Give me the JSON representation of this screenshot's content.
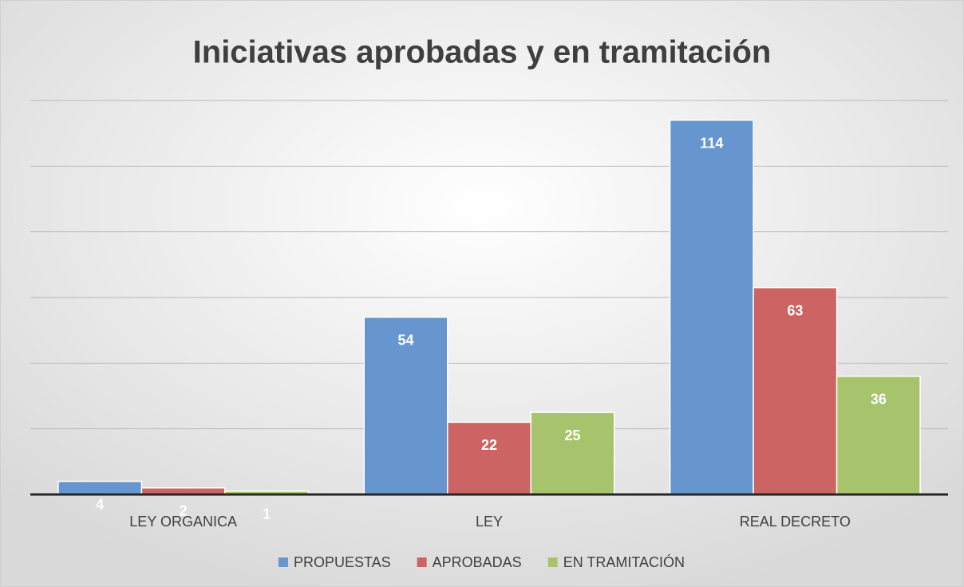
{
  "chart_data": {
    "type": "bar",
    "title": "Iniciativas aprobadas y en tramitación",
    "categories": [
      "LEY ORGANICA",
      "LEY",
      "REAL DECRETO"
    ],
    "series": [
      {
        "name": "PROPUESTAS",
        "color": "#6796cf",
        "values": [
          4,
          54,
          114
        ]
      },
      {
        "name": "APROBADAS",
        "color": "#cb6462",
        "values": [
          2,
          22,
          63
        ]
      },
      {
        "name": "EN TRAMITACIÓN",
        "color": "#a7c46c",
        "values": [
          1,
          25,
          36
        ]
      }
    ],
    "ylim": [
      0,
      120
    ],
    "yticks": [
      0,
      20,
      40,
      60,
      80,
      100,
      120
    ],
    "grid": true,
    "legend": "bottom"
  }
}
